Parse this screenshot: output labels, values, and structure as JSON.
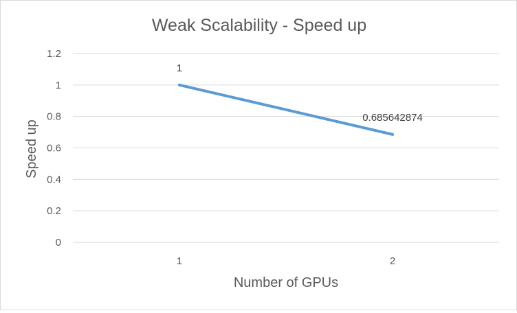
{
  "chart_data": {
    "type": "line",
    "title": "Weak Scalability - Speed up",
    "xlabel": "Number of GPUs",
    "ylabel": "Speed up",
    "categories": [
      "1",
      "2"
    ],
    "series": [
      {
        "values": [
          1,
          0.685642874
        ],
        "labels": [
          "1",
          "0.685642874"
        ]
      }
    ],
    "ylim": [
      0,
      1.2
    ],
    "yticks": [
      "0",
      "0.2",
      "0.4",
      "0.6",
      "0.8",
      "1",
      "1.2"
    ],
    "ytick_values": [
      0,
      0.2,
      0.4,
      0.6,
      0.8,
      1,
      1.2
    ],
    "grid": true,
    "legend": "none",
    "colors": {
      "line": "#5b9bd5",
      "grid": "#d9d9d9",
      "text": "#595959"
    }
  }
}
